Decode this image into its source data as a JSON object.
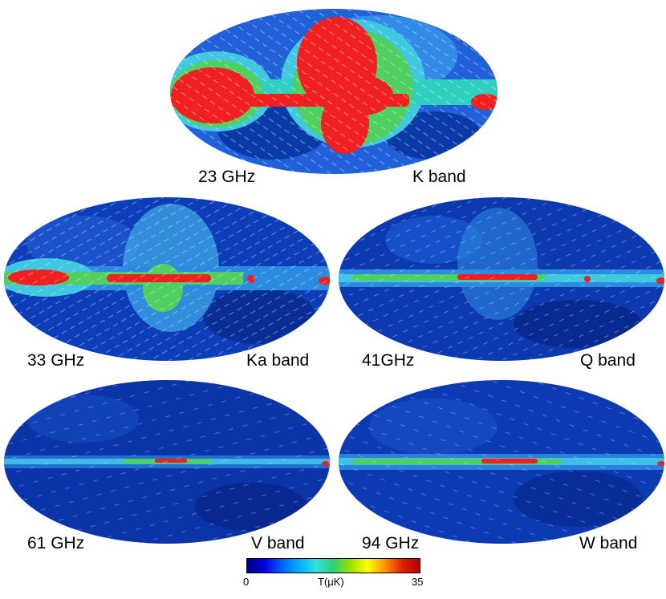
{
  "maps": [
    {
      "frequency": "23 GHz",
      "band": "K band",
      "galactic_plane_intensity": 1.0,
      "halo_intensity": 1.0
    },
    {
      "frequency": "33 GHz",
      "band": "Ka band",
      "galactic_plane_intensity": 0.8,
      "halo_intensity": 0.55
    },
    {
      "frequency": "41GHz",
      "band": "Q band",
      "galactic_plane_intensity": 0.6,
      "halo_intensity": 0.35
    },
    {
      "frequency": "61 GHz",
      "band": "V band",
      "galactic_plane_intensity": 0.35,
      "halo_intensity": 0.15
    },
    {
      "frequency": "94 GHz",
      "band": "W band",
      "galactic_plane_intensity": 0.4,
      "halo_intensity": 0.15
    }
  ],
  "colorbar": {
    "min_label": "0",
    "max_label": "35",
    "unit_label": "T(μK)",
    "colors": [
      "#000080",
      "#0000e0",
      "#0060ff",
      "#00b0ff",
      "#30e0e0",
      "#30d070",
      "#a0e000",
      "#ffff00",
      "#ff9000",
      "#e02000",
      "#b00000"
    ]
  }
}
